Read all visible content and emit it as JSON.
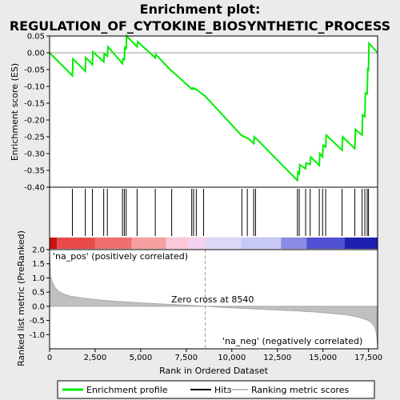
{
  "title_line1": "Enrichment plot:",
  "title_line2": "REGULATION_OF_CYTOKINE_BIOSYNTHETIC_PROCESS",
  "colors": {
    "enrichment_line": "#00ee00",
    "hit_line": "#000000",
    "ranking_fill": "#c0c0c0",
    "pos_label": "#cc0000",
    "neg_label": "#0000cc",
    "zero_dash": "#999999"
  },
  "legend": [
    {
      "label": "Enrichment profile",
      "icon": "green-line-icon"
    },
    {
      "label": "Hits",
      "icon": "black-line-icon"
    },
    {
      "label": "Ranking metric scores",
      "icon": "gray-line-icon"
    }
  ],
  "annotations": {
    "pos_label": "'na_pos' (positively correlated)",
    "neg_label": "'na_neg' (negatively correlated)",
    "zero_cross": "Zero cross at 8540"
  },
  "chart_data": [
    {
      "type": "line",
      "panel": "enrichment",
      "ylabel": "Enrichment score (ES)",
      "xlim": [
        0,
        18000
      ],
      "ylim": [
        -0.4,
        0.05
      ],
      "yticks": [
        0.05,
        0.0,
        -0.05,
        -0.1,
        -0.15,
        -0.2,
        -0.25,
        -0.3,
        -0.35,
        -0.4
      ],
      "ytick_labels": [
        "0.05",
        "0.00",
        "-0.05",
        "-0.10",
        "-0.15",
        "-0.20",
        "-0.25",
        "-0.30",
        "-0.35",
        "-0.40"
      ],
      "series": [
        {
          "x": [
            0,
            1250,
            1280,
            1960,
            1990,
            2350,
            2380,
            2970,
            3000,
            3170,
            3200,
            4000,
            4020,
            4100,
            4130,
            4200,
            4230,
            4800,
            4830,
            5800,
            5830,
            6700,
            6730,
            7800,
            7830,
            7900,
            7930,
            8050,
            8080,
            8450,
            8480,
            10550,
            10580,
            10850,
            10880,
            11200,
            11230,
            11300,
            11330,
            13600,
            13630,
            13700,
            13730,
            14050,
            14080,
            14300,
            14330,
            14800,
            14830,
            14980,
            15010,
            15150,
            15180,
            16050,
            16080,
            16750,
            16780,
            17150,
            17180,
            17300,
            17330,
            17430,
            17460,
            17500,
            17530,
            18000
          ],
          "y": [
            0.0,
            -0.068,
            -0.018,
            -0.055,
            -0.014,
            -0.035,
            0.003,
            -0.027,
            -0.002,
            -0.01,
            0.018,
            -0.032,
            -0.018,
            -0.02,
            0.016,
            0.013,
            0.05,
            0.018,
            0.033,
            -0.015,
            -0.005,
            -0.055,
            -0.055,
            -0.108,
            -0.105,
            -0.108,
            -0.105,
            -0.11,
            -0.11,
            -0.126,
            -0.126,
            -0.247,
            -0.247,
            -0.254,
            -0.254,
            -0.27,
            -0.25,
            -0.255,
            -0.255,
            -0.38,
            -0.355,
            -0.36,
            -0.333,
            -0.345,
            -0.328,
            -0.332,
            -0.31,
            -0.335,
            -0.3,
            -0.31,
            -0.275,
            -0.28,
            -0.245,
            -0.29,
            -0.25,
            -0.285,
            -0.228,
            -0.245,
            -0.185,
            -0.19,
            -0.12,
            -0.122,
            -0.048,
            -0.05,
            0.028,
            0.0
          ]
        }
      ]
    },
    {
      "type": "hits",
      "panel": "hits",
      "x": [
        1250,
        1960,
        2350,
        2970,
        3170,
        4000,
        4100,
        4200,
        4800,
        5800,
        6700,
        7800,
        7900,
        8050,
        8450,
        10550,
        10850,
        11200,
        11300,
        13600,
        13700,
        14050,
        14300,
        14800,
        14980,
        15150,
        16050,
        16750,
        17150,
        17300,
        17430,
        17500
      ]
    },
    {
      "type": "area",
      "panel": "ranking",
      "xlabel": "Rank in Ordered Dataset",
      "ylabel": "Ranked list metric (PreRanked)",
      "xlim": [
        0,
        18000
      ],
      "ylim": [
        -1.5,
        2.0
      ],
      "xticks": [
        0,
        2500,
        5000,
        7500,
        10000,
        12500,
        15000,
        17500
      ],
      "xtick_labels": [
        "0",
        "2,500",
        "5,000",
        "7,500",
        "10,000",
        "12,500",
        "15,000",
        "17,500"
      ],
      "yticks": [
        2.0,
        1.5,
        1.0,
        0.5,
        0.0,
        -0.5,
        -1.0
      ],
      "ytick_labels": [
        "2.0",
        "1.5",
        "1.0",
        "0.5",
        "0.0",
        "-0.5",
        "-1.0"
      ],
      "zero_cross": 8540,
      "x": [
        0,
        50,
        150,
        300,
        500,
        800,
        1200,
        1800,
        2500,
        3500,
        4500,
        5500,
        6500,
        7500,
        8540,
        9500,
        10500,
        11500,
        12500,
        13500,
        14500,
        15500,
        16300,
        16800,
        17200,
        17500,
        17700,
        17850,
        17950,
        18000
      ],
      "values": [
        1.9,
        1.1,
        0.85,
        0.65,
        0.52,
        0.42,
        0.35,
        0.29,
        0.24,
        0.18,
        0.14,
        0.1,
        0.07,
        0.04,
        0.0,
        -0.04,
        -0.07,
        -0.1,
        -0.13,
        -0.16,
        -0.2,
        -0.25,
        -0.3,
        -0.36,
        -0.43,
        -0.5,
        -0.6,
        -0.75,
        -1.0,
        -1.4
      ]
    },
    {
      "type": "heatmap",
      "panel": "colorbar",
      "segments": [
        {
          "from": 0,
          "to": 400,
          "color": "#cc1111"
        },
        {
          "from": 400,
          "to": 2500,
          "color": "#e84a4a"
        },
        {
          "from": 2500,
          "to": 4500,
          "color": "#f07070"
        },
        {
          "from": 4500,
          "to": 6400,
          "color": "#f5a0a0"
        },
        {
          "from": 6400,
          "to": 7600,
          "color": "#fac8d8"
        },
        {
          "from": 7600,
          "to": 8540,
          "color": "#f5d0f0"
        },
        {
          "from": 8540,
          "to": 10500,
          "color": "#dcd8f5"
        },
        {
          "from": 10500,
          "to": 12700,
          "color": "#c8c8f5"
        },
        {
          "from": 12700,
          "to": 14100,
          "color": "#8a8ae6"
        },
        {
          "from": 14100,
          "to": 16200,
          "color": "#5050d2"
        },
        {
          "from": 16200,
          "to": 18000,
          "color": "#2020b0"
        }
      ]
    }
  ]
}
